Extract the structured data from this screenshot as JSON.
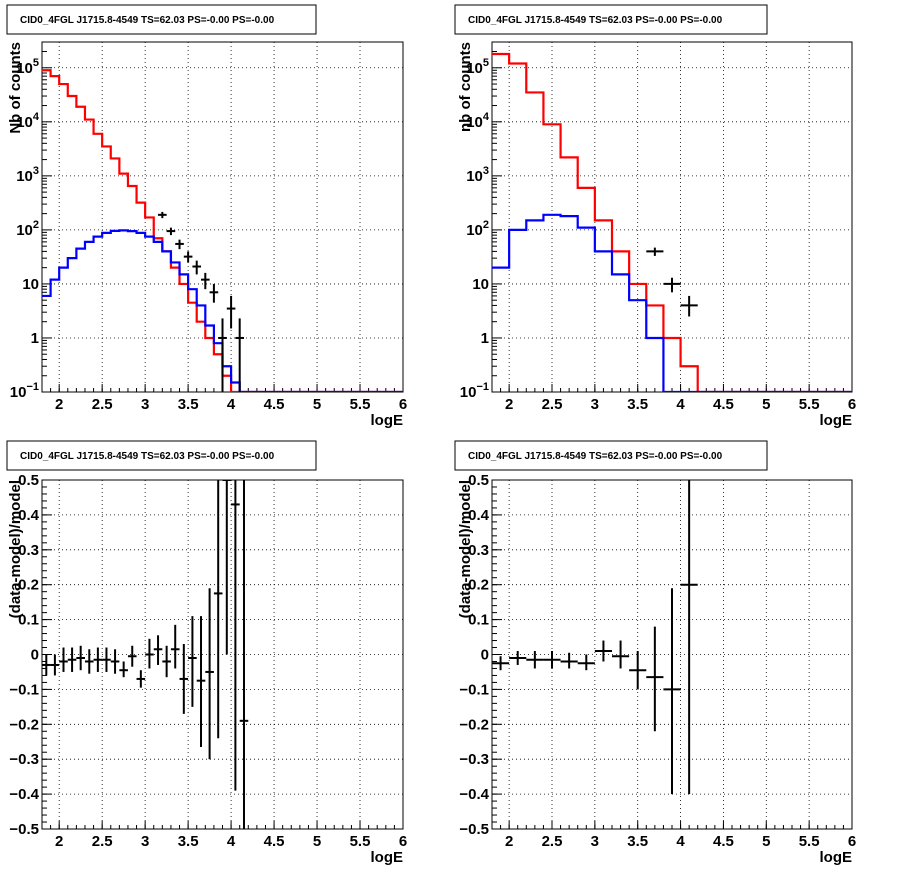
{
  "chart_data": [
    {
      "type": "histogram",
      "title": "CID0_4FGL J1715.8-4549 TS=62.03 PS=-0.00 PS=-0.00",
      "xlabel": "logE",
      "ylabel": "Nb of counts",
      "xlim": [
        1.8,
        6.0
      ],
      "ylim": [
        0.1,
        300000
      ],
      "yscale": "log",
      "grid": true,
      "x_ticks": [
        "2",
        "2.5",
        "3",
        "3.5",
        "4",
        "4.5",
        "5",
        "5.5",
        "6"
      ],
      "y_ticks": [
        "10^-1",
        "1",
        "10",
        "10^2",
        "10^3",
        "10^4",
        "10^5"
      ],
      "bin_edges": [
        1.8,
        1.9,
        2.0,
        2.1,
        2.2,
        2.3,
        2.4,
        2.5,
        2.6,
        2.7,
        2.8,
        2.9,
        3.0,
        3.1,
        3.2,
        3.3,
        3.4,
        3.5,
        3.6,
        3.7,
        3.8,
        3.9,
        4.0,
        4.1,
        4.2,
        4.3,
        4.4,
        4.5,
        4.6,
        4.7,
        4.8,
        4.9,
        5.0,
        5.1,
        5.2,
        5.3,
        5.4,
        5.5,
        5.6,
        5.7,
        5.8,
        5.9,
        6.0
      ],
      "series": [
        {
          "name": "",
          "color": "#ff0000",
          "style": "step",
          "values": [
            90000,
            70000,
            50000,
            30000,
            19000,
            11000,
            6000,
            3500,
            2100,
            1100,
            650,
            320,
            170,
            70,
            40,
            20,
            10,
            4.5,
            2.0,
            1.0,
            0.5,
            0.2,
            0.1,
            0.05,
            0.05,
            0.05,
            0.05,
            0.05,
            0.05,
            0.05,
            0.05,
            0.05,
            0.05,
            0.05,
            0.05,
            0.05,
            0.05,
            0.05,
            0.05,
            0.05,
            0.05,
            0.05
          ]
        },
        {
          "name": "",
          "color": "#0000ff",
          "style": "step",
          "values": [
            6,
            12,
            20,
            30,
            45,
            60,
            75,
            88,
            96,
            98,
            95,
            88,
            75,
            60,
            40,
            25,
            15,
            8,
            4,
            1.7,
            0.8,
            0.3,
            0.15,
            0.1,
            0.1,
            0.1,
            0.1,
            0.1,
            0.1,
            0.1,
            0.1,
            0.1,
            0.1,
            0.1,
            0.1,
            0.1,
            0.1,
            0.1,
            0.1,
            0.1,
            0.1,
            0.1
          ]
        },
        {
          "name": "",
          "color": "#000000",
          "style": "points",
          "points": [
            {
              "x": 3.2,
              "y": 190,
              "xerr": 0.05,
              "ylo": 165,
              "yhi": 215
            },
            {
              "x": 3.3,
              "y": 95,
              "xerr": 0.05,
              "ylo": 80,
              "yhi": 110
            },
            {
              "x": 3.4,
              "y": 55,
              "xerr": 0.05,
              "ylo": 44,
              "yhi": 66
            },
            {
              "x": 3.5,
              "y": 32,
              "xerr": 0.05,
              "ylo": 25,
              "yhi": 40
            },
            {
              "x": 3.6,
              "y": 21,
              "xerr": 0.05,
              "ylo": 15,
              "yhi": 27
            },
            {
              "x": 3.7,
              "y": 12,
              "xerr": 0.05,
              "ylo": 8,
              "yhi": 16
            },
            {
              "x": 3.8,
              "y": 7,
              "xerr": 0.05,
              "ylo": 4.5,
              "yhi": 10
            },
            {
              "x": 3.9,
              "y": 1,
              "xerr": 0.05,
              "ylo": 0.1,
              "yhi": 2.3
            },
            {
              "x": 4.0,
              "y": 3.5,
              "xerr": 0.05,
              "ylo": 1.5,
              "yhi": 6
            },
            {
              "x": 4.1,
              "y": 1,
              "xerr": 0.05,
              "ylo": 0.1,
              "yhi": 2.3
            }
          ]
        }
      ]
    },
    {
      "type": "histogram",
      "title": "CID0_4FGL J1715.8-4549 TS=62.03 PS=-0.00 PS=-0.00",
      "xlabel": "logE",
      "ylabel": "nb of counts",
      "xlim": [
        1.8,
        6.0
      ],
      "ylim": [
        0.1,
        300000
      ],
      "yscale": "log",
      "grid": true,
      "x_ticks": [
        "2",
        "2.5",
        "3",
        "3.5",
        "4",
        "4.5",
        "5",
        "5.5",
        "6"
      ],
      "y_ticks": [
        "10^-1",
        "1",
        "10",
        "10^2",
        "10^3",
        "10^4",
        "10^5"
      ],
      "bin_edges": [
        1.8,
        2.0,
        2.2,
        2.4,
        2.6,
        2.8,
        3.0,
        3.2,
        3.4,
        3.6,
        3.8,
        4.0,
        4.2,
        4.4,
        4.6,
        4.8,
        5.0,
        5.2,
        5.4,
        5.6,
        5.8,
        6.0
      ],
      "series": [
        {
          "name": "",
          "color": "#ff0000",
          "style": "step",
          "values": [
            180000,
            120000,
            35000,
            9000,
            2200,
            600,
            150,
            40,
            10,
            4,
            1,
            0.3,
            0.1,
            0.05,
            0.05,
            0.05,
            0.05,
            0.05,
            0.05,
            0.05,
            0.05
          ]
        },
        {
          "name": "",
          "color": "#0000ff",
          "style": "step",
          "values": [
            20,
            100,
            150,
            190,
            180,
            110,
            40,
            15,
            5,
            1,
            0.1,
            0.1,
            0.1,
            0.1,
            0.1,
            0.1,
            0.1,
            0.1,
            0.1,
            0.1,
            0.1
          ]
        },
        {
          "name": "",
          "color": "#000000",
          "style": "points",
          "points": [
            {
              "x": 3.7,
              "y": 40,
              "xerr": 0.1,
              "ylo": 33,
              "yhi": 47
            },
            {
              "x": 3.9,
              "y": 10,
              "xerr": 0.1,
              "ylo": 7,
              "yhi": 13
            },
            {
              "x": 4.1,
              "y": 4,
              "xerr": 0.1,
              "ylo": 2.5,
              "yhi": 6
            }
          ]
        }
      ]
    },
    {
      "type": "scatter",
      "title": "CID0_4FGL J1715.8-4549 TS=62.03 PS=-0.00 PS=-0.00",
      "xlabel": "logE",
      "ylabel": "(data-model)/model",
      "xlim": [
        1.8,
        6.0
      ],
      "ylim": [
        -0.5,
        0.5
      ],
      "grid": true,
      "x_ticks": [
        "2",
        "2.5",
        "3",
        "3.5",
        "4",
        "4.5",
        "5",
        "5.5",
        "6"
      ],
      "y_ticks": [
        "−0.5",
        "−0.4",
        "−0.3",
        "−0.2",
        "−0.1",
        "0",
        "0.1",
        "0.2",
        "0.3",
        "0.4",
        "0.5"
      ],
      "series": [
        {
          "name": "",
          "color": "#000000",
          "points": [
            {
              "x": 1.85,
              "y": -0.03,
              "xerr": 0.05,
              "ylo": -0.06,
              "yhi": 0.0
            },
            {
              "x": 1.95,
              "y": -0.03,
              "xerr": 0.05,
              "ylo": -0.06,
              "yhi": 0.0
            },
            {
              "x": 2.05,
              "y": -0.02,
              "xerr": 0.05,
              "ylo": -0.05,
              "yhi": 0.02
            },
            {
              "x": 2.15,
              "y": -0.015,
              "xerr": 0.05,
              "ylo": -0.05,
              "yhi": 0.02
            },
            {
              "x": 2.25,
              "y": -0.01,
              "xerr": 0.05,
              "ylo": -0.045,
              "yhi": 0.025
            },
            {
              "x": 2.35,
              "y": -0.02,
              "xerr": 0.05,
              "ylo": -0.055,
              "yhi": 0.015
            },
            {
              "x": 2.45,
              "y": -0.015,
              "xerr": 0.05,
              "ylo": -0.05,
              "yhi": 0.02
            },
            {
              "x": 2.55,
              "y": -0.015,
              "xerr": 0.05,
              "ylo": -0.05,
              "yhi": 0.02
            },
            {
              "x": 2.65,
              "y": -0.02,
              "xerr": 0.05,
              "ylo": -0.055,
              "yhi": 0.015
            },
            {
              "x": 2.75,
              "y": -0.045,
              "xerr": 0.05,
              "ylo": -0.065,
              "yhi": -0.02
            },
            {
              "x": 2.85,
              "y": -0.005,
              "xerr": 0.05,
              "ylo": -0.035,
              "yhi": 0.025
            },
            {
              "x": 2.95,
              "y": -0.07,
              "xerr": 0.05,
              "ylo": -0.095,
              "yhi": -0.045
            },
            {
              "x": 3.05,
              "y": 0.0,
              "xerr": 0.05,
              "ylo": -0.04,
              "yhi": 0.045
            },
            {
              "x": 3.15,
              "y": 0.015,
              "xerr": 0.05,
              "ylo": -0.03,
              "yhi": 0.055
            },
            {
              "x": 3.25,
              "y": -0.02,
              "xerr": 0.05,
              "ylo": -0.065,
              "yhi": 0.025
            },
            {
              "x": 3.35,
              "y": 0.015,
              "xerr": 0.05,
              "ylo": -0.04,
              "yhi": 0.085
            },
            {
              "x": 3.45,
              "y": -0.07,
              "xerr": 0.05,
              "ylo": -0.17,
              "yhi": 0.03
            },
            {
              "x": 3.55,
              "y": -0.01,
              "xerr": 0.05,
              "ylo": -0.15,
              "yhi": 0.11
            },
            {
              "x": 3.65,
              "y": -0.075,
              "xerr": 0.05,
              "ylo": -0.265,
              "yhi": 0.11
            },
            {
              "x": 3.75,
              "y": -0.05,
              "xerr": 0.05,
              "ylo": -0.3,
              "yhi": 0.19
            },
            {
              "x": 3.85,
              "y": 0.175,
              "xerr": 0.05,
              "ylo": -0.24,
              "yhi": 0.5
            },
            {
              "x": 3.95,
              "y": 0.5,
              "xerr": 0.05,
              "ylo": 0.0,
              "yhi": 0.5
            },
            {
              "x": 4.05,
              "y": 0.43,
              "xerr": 0.05,
              "ylo": -0.39,
              "yhi": 0.5
            },
            {
              "x": 4.15,
              "y": -0.19,
              "xerr": 0.05,
              "ylo": -0.5,
              "yhi": 0.5
            }
          ]
        }
      ]
    },
    {
      "type": "scatter",
      "title": "CID0_4FGL J1715.8-4549 TS=62.03 PS=-0.00 PS=-0.00",
      "xlabel": "logE",
      "ylabel": "(data-model)/model",
      "xlim": [
        1.8,
        6.0
      ],
      "ylim": [
        -0.5,
        0.5
      ],
      "grid": true,
      "x_ticks": [
        "2",
        "2.5",
        "3",
        "3.5",
        "4",
        "4.5",
        "5",
        "5.5",
        "6"
      ],
      "y_ticks": [
        "−0.5",
        "−0.4",
        "−0.3",
        "−0.2",
        "−0.1",
        "0",
        "0.1",
        "0.2",
        "0.3",
        "0.4",
        "0.5"
      ],
      "series": [
        {
          "name": "",
          "color": "#000000",
          "points": [
            {
              "x": 1.9,
              "y": -0.025,
              "xerr": 0.1,
              "ylo": -0.045,
              "yhi": -0.005
            },
            {
              "x": 2.1,
              "y": -0.01,
              "xerr": 0.1,
              "ylo": -0.03,
              "yhi": 0.01
            },
            {
              "x": 2.3,
              "y": -0.015,
              "xerr": 0.1,
              "ylo": -0.04,
              "yhi": 0.01
            },
            {
              "x": 2.5,
              "y": -0.015,
              "xerr": 0.1,
              "ylo": -0.04,
              "yhi": 0.01
            },
            {
              "x": 2.7,
              "y": -0.02,
              "xerr": 0.1,
              "ylo": -0.04,
              "yhi": 0.005
            },
            {
              "x": 2.9,
              "y": -0.025,
              "xerr": 0.1,
              "ylo": -0.045,
              "yhi": 0.0
            },
            {
              "x": 3.1,
              "y": 0.01,
              "xerr": 0.1,
              "ylo": -0.02,
              "yhi": 0.04
            },
            {
              "x": 3.3,
              "y": -0.005,
              "xerr": 0.1,
              "ylo": -0.04,
              "yhi": 0.04
            },
            {
              "x": 3.5,
              "y": -0.045,
              "xerr": 0.1,
              "ylo": -0.1,
              "yhi": 0.01
            },
            {
              "x": 3.7,
              "y": -0.065,
              "xerr": 0.1,
              "ylo": -0.22,
              "yhi": 0.08
            },
            {
              "x": 3.9,
              "y": -0.1,
              "xerr": 0.1,
              "ylo": -0.4,
              "yhi": 0.19
            },
            {
              "x": 4.1,
              "y": 0.2,
              "xerr": 0.1,
              "ylo": -0.4,
              "yhi": 0.5
            }
          ]
        }
      ]
    }
  ]
}
